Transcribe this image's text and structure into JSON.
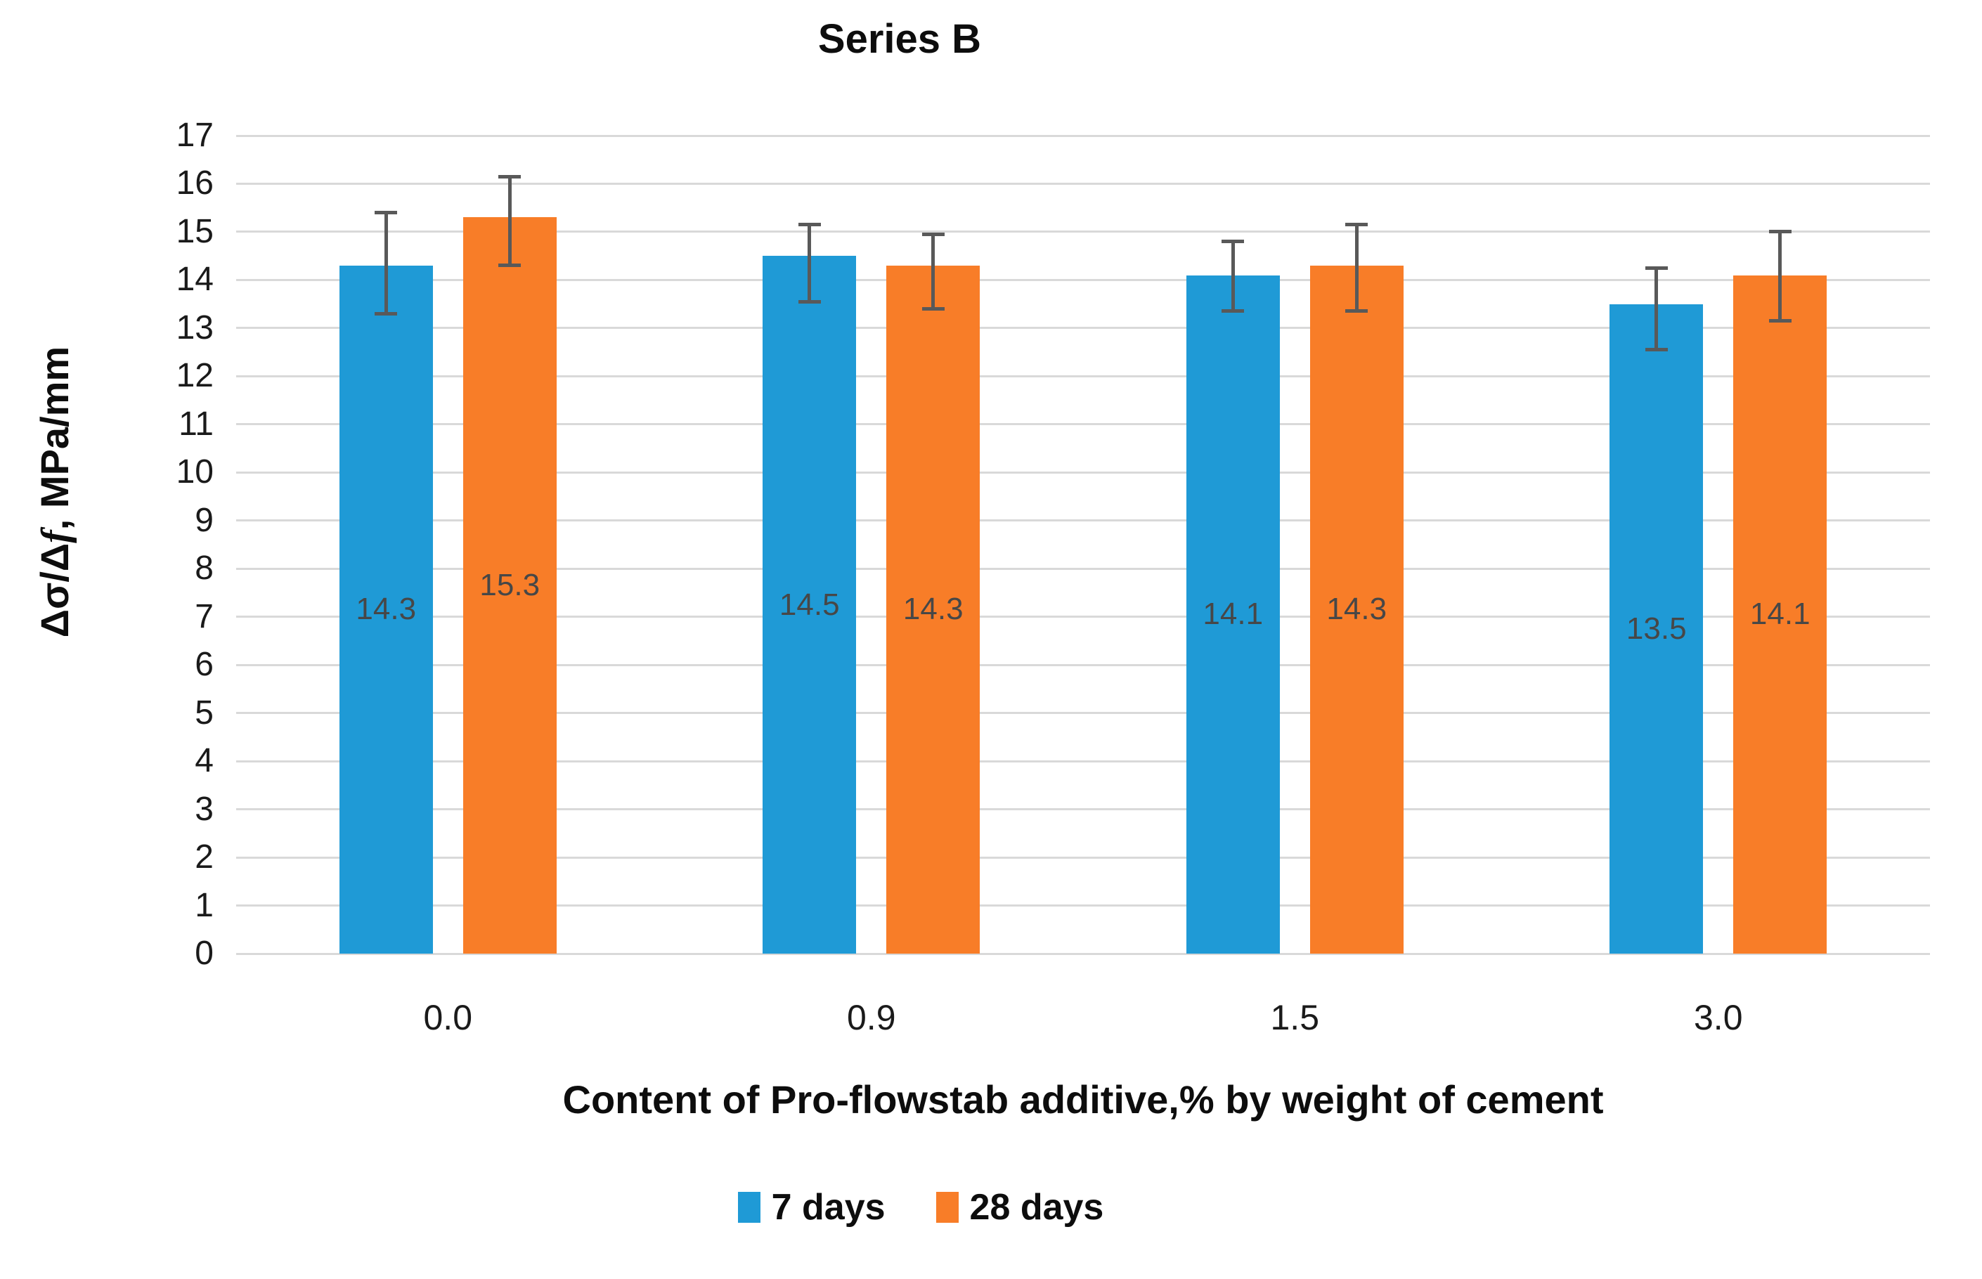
{
  "title": "Series B",
  "y_axis": {
    "label_parts": [
      "Δσ/Δ",
      "f",
      ", MPa/mm"
    ],
    "min": 0,
    "max": 17,
    "step": 1
  },
  "x_axis": {
    "title": "Content of Pro-flowstab additive,% by weight of cement",
    "categories": [
      "0.0",
      "0.9",
      "1.5",
      "3.0"
    ]
  },
  "colors": {
    "series_blue": "#1f9ad6",
    "series_orange": "#f87d28",
    "gridline": "#d9d9d9",
    "error_bar": "#595959",
    "data_label": "#474747",
    "tick_label": "#1a1a1a"
  },
  "chart_data": {
    "type": "bar",
    "title": "Series B",
    "xlabel": "Content of Pro-flowstab additive,% by weight of cement",
    "ylabel": "Δσ/Δf, MPa/mm",
    "ylim": [
      0,
      17
    ],
    "ytick_step": 1,
    "grid": true,
    "legend_position": "bottom",
    "categories": [
      "0.0",
      "0.9",
      "1.5",
      "3.0"
    ],
    "series": [
      {
        "name": "7 days",
        "color": "#1f9ad6",
        "values": [
          14.3,
          14.5,
          14.1,
          13.5
        ],
        "labels": [
          "14.3",
          "14.5",
          "14.1",
          "13.5"
        ],
        "error_plus": [
          1.1,
          0.65,
          0.7,
          0.75
        ],
        "error_minus": [
          1.0,
          0.95,
          0.75,
          0.95
        ]
      },
      {
        "name": "28 days",
        "color": "#f87d28",
        "values": [
          15.3,
          14.3,
          14.3,
          14.1
        ],
        "labels": [
          "15.3",
          "14.3",
          "14.3",
          "14.1"
        ],
        "error_plus": [
          0.85,
          0.65,
          0.85,
          0.9
        ],
        "error_minus": [
          1.0,
          0.9,
          0.95,
          0.95
        ]
      }
    ]
  }
}
